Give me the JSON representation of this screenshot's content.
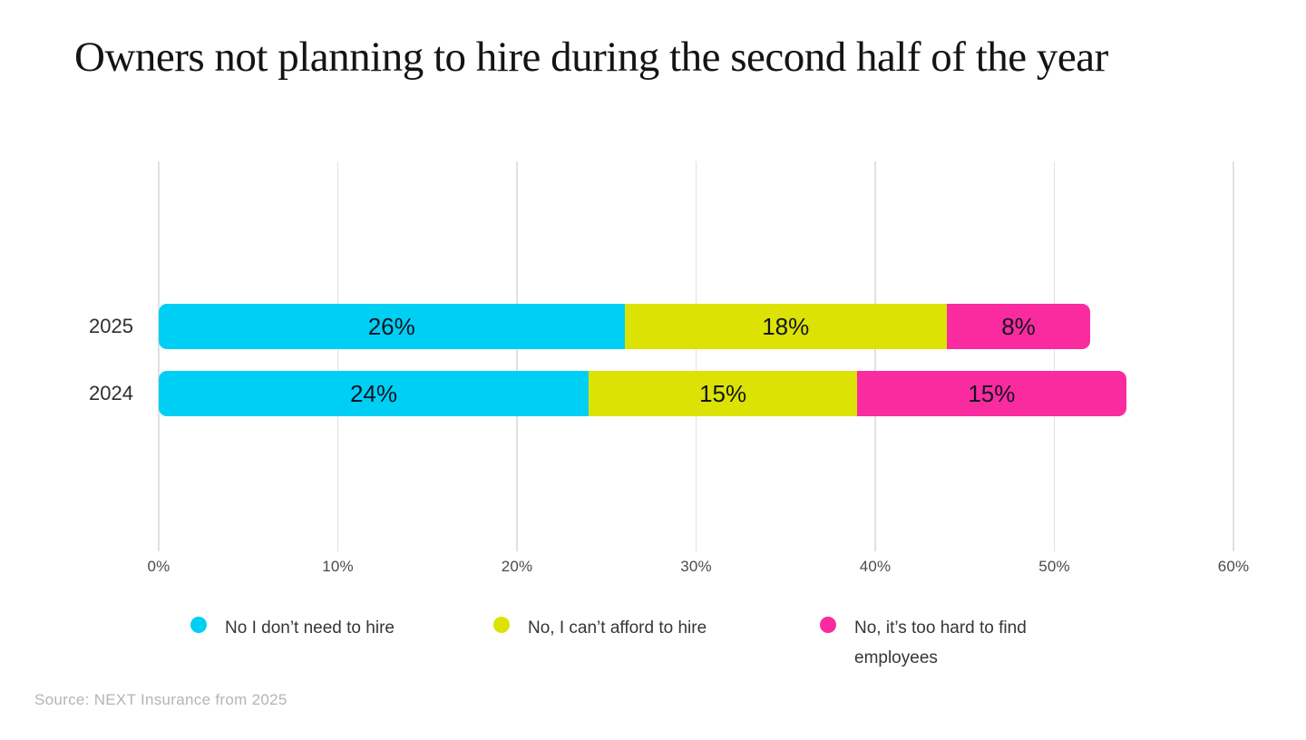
{
  "title": "Owners not planning to hire during the second half of the year",
  "source": "Source: NEXT Insurance from 2025",
  "chart_data": {
    "type": "bar",
    "orientation": "horizontal",
    "stacked": true,
    "title": "Owners not planning to hire during the second half of the year",
    "categories": [
      "2025",
      "2024"
    ],
    "series": [
      {
        "name": "No I don’t need to hire",
        "color": "#00CFF4",
        "values": [
          26,
          24
        ]
      },
      {
        "name": "No, I can’t afford to hire",
        "color": "#DCE203",
        "values": [
          18,
          15
        ]
      },
      {
        "name": "No, it’s too hard to find employees",
        "color": "#FA2B9F",
        "values": [
          8,
          15
        ]
      }
    ],
    "x_ticks": [
      "0%",
      "10%",
      "20%",
      "30%",
      "40%",
      "50%",
      "60%"
    ],
    "xlim": [
      0,
      60
    ],
    "value_suffix": "%",
    "grid": true,
    "legend_position": "bottom",
    "text_colors": {
      "bar_label": "#111622",
      "axis_label": "#4b4b4b"
    }
  }
}
